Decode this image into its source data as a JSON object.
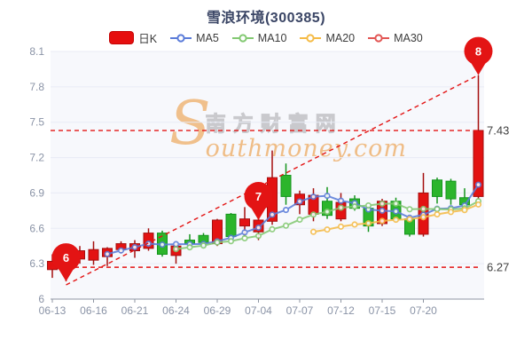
{
  "title": "雪浪环境(300385)",
  "legend": {
    "items": [
      {
        "id": "dayk",
        "label": "日K",
        "color": "#e60f0f",
        "marker": "rect"
      },
      {
        "id": "ma5",
        "label": "MA5",
        "color": "#5b7cd9",
        "marker": "ring"
      },
      {
        "id": "ma10",
        "label": "MA10",
        "color": "#83c972",
        "marker": "ring"
      },
      {
        "id": "ma20",
        "label": "MA20",
        "color": "#f5bb46",
        "marker": "ring"
      },
      {
        "id": "ma30",
        "label": "MA30",
        "color": "#e25654",
        "marker": "ring"
      }
    ]
  },
  "watermark": {
    "big_letter": "S",
    "cn_text": "南方财富网",
    "en_text": "outhmoney.com"
  },
  "chart_data": {
    "type": "candlestick",
    "title": "雪浪环境(300385)",
    "grid": true,
    "legend_position": "top",
    "y_axis": {
      "min": 6,
      "max": 8.1,
      "step": 0.3,
      "ticks": [
        "8.1",
        "7.8",
        "7.5",
        "7.2",
        "6.9",
        "6.6",
        "6.3",
        "6"
      ]
    },
    "x_axis": {
      "labels": [
        "06-13",
        "06-16",
        "06-21",
        "06-24",
        "06-29",
        "07-04",
        "07-07",
        "07-12",
        "07-15",
        "07-20"
      ],
      "label_indices": [
        0,
        3,
        6,
        9,
        12,
        15,
        18,
        21,
        24,
        27
      ]
    },
    "candle_count": 32,
    "ohlc": [
      [
        6.25,
        6.38,
        6.18,
        6.32
      ],
      [
        6.27,
        6.36,
        6.15,
        6.33
      ],
      [
        6.34,
        6.45,
        6.3,
        6.41
      ],
      [
        6.33,
        6.49,
        6.29,
        6.42
      ],
      [
        6.36,
        6.44,
        6.28,
        6.43
      ],
      [
        6.42,
        6.49,
        6.39,
        6.47
      ],
      [
        6.41,
        6.5,
        6.35,
        6.47
      ],
      [
        6.43,
        6.6,
        6.41,
        6.56
      ],
      [
        6.56,
        6.58,
        6.36,
        6.38
      ],
      [
        6.37,
        6.47,
        6.3,
        6.45
      ],
      [
        6.5,
        6.55,
        6.45,
        6.47
      ],
      [
        6.54,
        6.56,
        6.46,
        6.48
      ],
      [
        6.47,
        6.68,
        6.45,
        6.67
      ],
      [
        6.72,
        6.73,
        6.5,
        6.53
      ],
      [
        6.62,
        6.78,
        6.53,
        6.68
      ],
      [
        6.57,
        6.69,
        6.5,
        6.67
      ],
      [
        6.66,
        7.26,
        6.63,
        7.03
      ],
      [
        7.05,
        7.15,
        6.8,
        6.87
      ],
      [
        6.8,
        6.92,
        6.72,
        6.89
      ],
      [
        6.72,
        6.94,
        6.66,
        6.88
      ],
      [
        6.83,
        6.95,
        6.68,
        6.71
      ],
      [
        6.68,
        6.9,
        6.66,
        6.82
      ],
      [
        6.85,
        6.88,
        6.75,
        6.77
      ],
      [
        6.77,
        6.79,
        6.57,
        6.62
      ],
      [
        6.64,
        6.85,
        6.62,
        6.83
      ],
      [
        6.83,
        6.86,
        6.66,
        6.68
      ],
      [
        6.68,
        6.7,
        6.53,
        6.55
      ],
      [
        6.55,
        7.07,
        6.53,
        6.9
      ],
      [
        7.01,
        7.03,
        6.81,
        6.87
      ],
      [
        7.0,
        7.02,
        6.8,
        6.85
      ],
      [
        6.86,
        6.94,
        6.78,
        6.8
      ],
      [
        6.87,
        7.9,
        6.85,
        7.43
      ]
    ],
    "up_color": "#e31212",
    "up_border": "#a50f0f",
    "down_color": "#2cb52c",
    "down_border": "#14951d",
    "ma_series": [
      {
        "label": "MA5",
        "period": 5,
        "color": "#5b7cd9",
        "visible": true
      },
      {
        "label": "MA10",
        "period": 10,
        "color": "#83c972",
        "visible": true
      },
      {
        "label": "MA20",
        "period": 20,
        "color": "#f5bb46",
        "visible": true
      },
      {
        "label": "MA30",
        "period": 30,
        "color": "#e25654",
        "visible": false
      }
    ],
    "ref_lines": [
      {
        "price": 7.43,
        "label": "7.43"
      },
      {
        "price": 6.27,
        "label": "6.27"
      }
    ],
    "trend_line": {
      "from_index": 1,
      "from_price": 6.12,
      "to_index": 31,
      "to_price": 7.9
    },
    "markers": [
      {
        "label": "6",
        "index": 1,
        "price": 6.15
      },
      {
        "label": "7",
        "index": 15,
        "price": 6.67
      },
      {
        "label": "8",
        "index": 31,
        "price": 7.9
      }
    ],
    "dash_color": "#e31414",
    "axis_text_color": "#8a93a6",
    "ref_text_color": "#3f3f3f",
    "grid_color": "#e8ebf5",
    "axis_line_color": "#8f96a3"
  }
}
